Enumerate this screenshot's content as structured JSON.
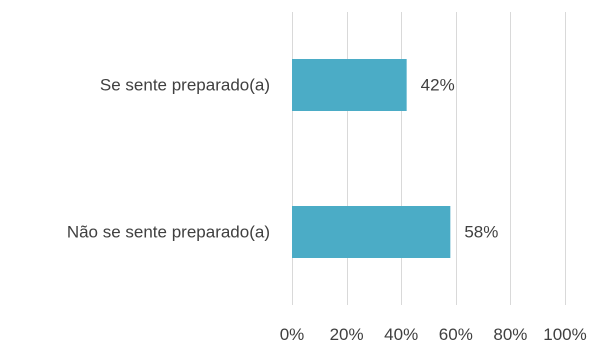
{
  "chart_data": {
    "type": "bar",
    "orientation": "horizontal",
    "title": "",
    "xlabel": "",
    "ylabel": "",
    "categories": [
      "Se sente preparado(a)",
      "Não se sente preparado(a)"
    ],
    "values": [
      42,
      58
    ],
    "value_labels": [
      "42%",
      "58%"
    ],
    "xlim": [
      0,
      100
    ],
    "x_ticks": [
      0,
      20,
      40,
      60,
      80,
      100
    ],
    "x_tick_labels": [
      "0%",
      "20%",
      "40%",
      "60%",
      "80%",
      "100%"
    ],
    "grid": "vertical",
    "legend": "none",
    "bar_color": "#4BACC6",
    "gridline_color": "#D9D9D9",
    "text_color": "#404040"
  }
}
